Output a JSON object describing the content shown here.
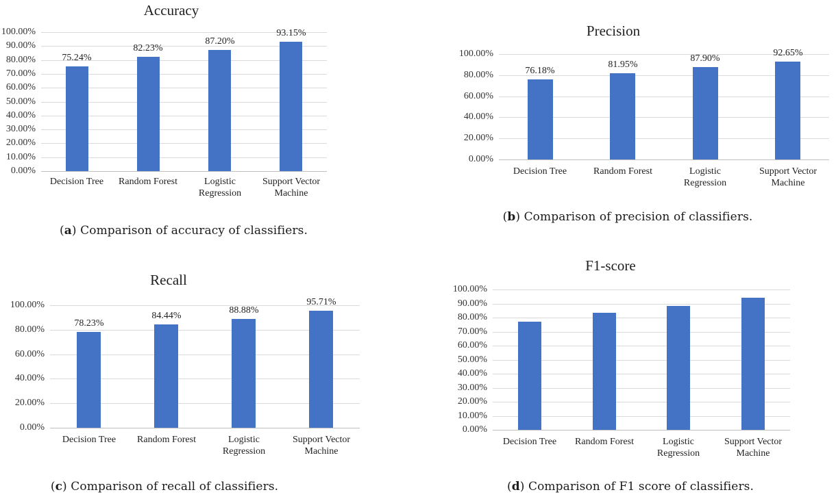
{
  "colors": {
    "bar_fill": "#4472C4",
    "gridline": "#D9D9D9",
    "axis_line": "#BFBFBF",
    "text": "#262626"
  },
  "chart_data": [
    {
      "type": "bar",
      "panel": "a",
      "title": "Accuracy",
      "categories": [
        "Decision Tree",
        "Random Forest",
        "Logistic Regression",
        "Support Vector Machine"
      ],
      "values": [
        75.24,
        82.23,
        87.2,
        93.15
      ],
      "data_labels": [
        "75.24%",
        "82.23%",
        "87.20%",
        "93.15%"
      ],
      "xlabel": "",
      "ylabel": "",
      "ylim": [
        0,
        100
      ],
      "y_tick_step": 10,
      "y_tick_labels": [
        "0.00%",
        "10.00%",
        "20.00%",
        "30.00%",
        "40.00%",
        "50.00%",
        "60.00%",
        "70.00%",
        "80.00%",
        "90.00%",
        "100.00%"
      ],
      "grid": true,
      "legend": "none",
      "caption": {
        "prefix": "(",
        "label": "a",
        "suffix": ") ",
        "text": "Comparison of accuracy of classifiers."
      }
    },
    {
      "type": "bar",
      "panel": "b",
      "title": "Precision",
      "categories": [
        "Decision Tree",
        "Random Forest",
        "Logistic Regression",
        "Support Vector Machine"
      ],
      "values": [
        76.18,
        81.95,
        87.9,
        92.65
      ],
      "data_labels": [
        "76.18%",
        "81.95%",
        "87.90%",
        "92.65%"
      ],
      "xlabel": "",
      "ylabel": "",
      "ylim": [
        0,
        100
      ],
      "y_tick_step": 20,
      "y_tick_labels": [
        "0.00%",
        "20.00%",
        "40.00%",
        "60.00%",
        "80.00%",
        "100.00%"
      ],
      "grid": true,
      "legend": "none",
      "caption": {
        "prefix": "(",
        "label": "b",
        "suffix": ") ",
        "text": "Comparison of precision of classifiers."
      }
    },
    {
      "type": "bar",
      "panel": "c",
      "title": "Recall",
      "categories": [
        "Decision Tree",
        "Random Forest",
        "Logistic Regression",
        "Support Vector Machine"
      ],
      "values": [
        78.23,
        84.44,
        88.88,
        95.71
      ],
      "data_labels": [
        "78.23%",
        "84.44%",
        "88.88%",
        "95.71%"
      ],
      "xlabel": "",
      "ylabel": "",
      "ylim": [
        0,
        100
      ],
      "y_tick_step": 20,
      "y_tick_labels": [
        "0.00%",
        "20.00%",
        "40.00%",
        "60.00%",
        "80.00%",
        "100.00%"
      ],
      "grid": true,
      "legend": "none",
      "caption": {
        "prefix": "(",
        "label": "c",
        "suffix": ") ",
        "text": "Comparison of recall of classifiers."
      }
    },
    {
      "type": "bar",
      "panel": "d",
      "title": "F1-score",
      "categories": [
        "Decision Tree",
        "Random Forest",
        "Logistic Regression",
        "Support Vector Machine"
      ],
      "values": [
        77.19,
        83.18,
        88.39,
        94.15
      ],
      "data_labels": null,
      "xlabel": "",
      "ylabel": "",
      "ylim": [
        0,
        100
      ],
      "y_tick_step": 10,
      "y_tick_labels": [
        "0.00%",
        "10.00%",
        "20.00%",
        "30.00%",
        "40.00%",
        "50.00%",
        "60.00%",
        "70.00%",
        "80.00%",
        "90.00%",
        "100.00%"
      ],
      "grid": true,
      "legend": "none",
      "caption": {
        "prefix": "(",
        "label": "d",
        "suffix": ") ",
        "text": "Comparison of F1 score of classifiers."
      }
    }
  ]
}
